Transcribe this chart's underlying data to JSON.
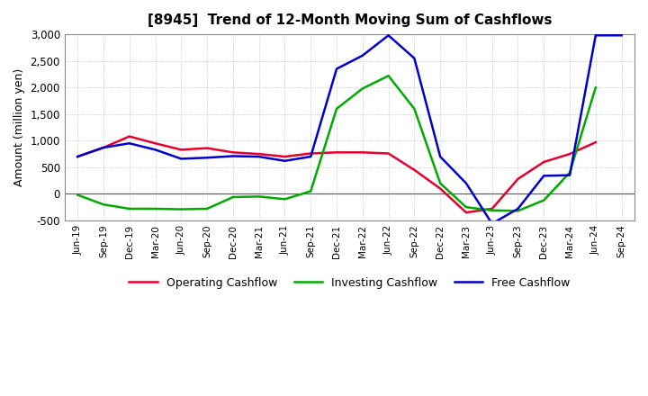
{
  "title": "[8945]  Trend of 12-Month Moving Sum of Cashflows",
  "ylabel": "Amount (million yen)",
  "x_labels": [
    "Jun-19",
    "Sep-19",
    "Dec-19",
    "Mar-20",
    "Jun-20",
    "Sep-20",
    "Dec-20",
    "Mar-21",
    "Jun-21",
    "Sep-21",
    "Dec-21",
    "Mar-22",
    "Jun-22",
    "Sep-22",
    "Dec-22",
    "Mar-23",
    "Jun-23",
    "Sep-23",
    "Dec-23",
    "Mar-24",
    "Jun-24",
    "Sep-24"
  ],
  "operating": [
    700,
    870,
    1080,
    950,
    830,
    860,
    780,
    750,
    700,
    760,
    780,
    780,
    760,
    450,
    100,
    -350,
    -280,
    280,
    600,
    750,
    970,
    null
  ],
  "investing": [
    -20,
    -200,
    -280,
    -280,
    -290,
    -280,
    -60,
    -50,
    -100,
    50,
    1600,
    1980,
    2220,
    1600,
    200,
    -250,
    -310,
    -320,
    -120,
    400,
    2000,
    null
  ],
  "free": [
    700,
    870,
    950,
    830,
    660,
    680,
    710,
    700,
    620,
    700,
    2350,
    2600,
    2980,
    2550,
    700,
    200,
    -560,
    -280,
    340,
    350,
    2980,
    2980
  ],
  "ylim": [
    -500,
    3000
  ],
  "yticks": [
    -500,
    0,
    500,
    1000,
    1500,
    2000,
    2500,
    3000
  ],
  "colors": {
    "operating": "#e8002d",
    "investing": "#00aa00",
    "free": "#0000cc"
  },
  "linewidth": 1.8,
  "background_color": "#ffffff",
  "plot_bg_color": "#ffffff",
  "grid_color": "#aaaaaa"
}
